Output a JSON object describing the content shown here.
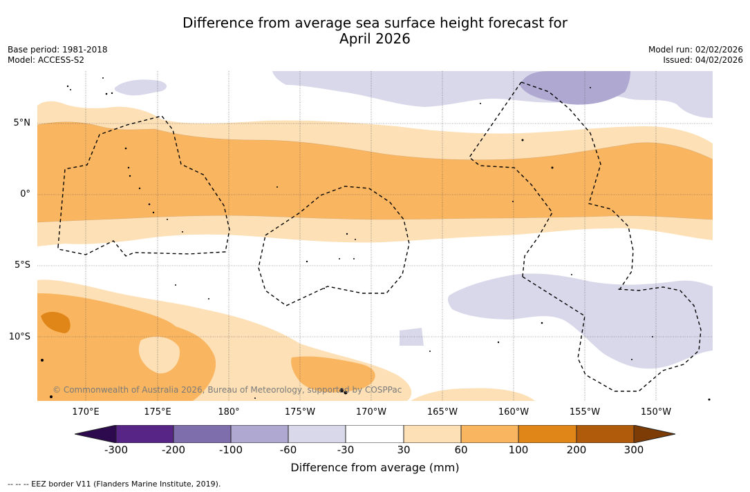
{
  "title_line1": "Difference from average sea surface height forecast for",
  "title_line2": "April 2026",
  "base_period": "Base period: 1981-2018",
  "model": "Model: ACCESS-S2",
  "model_run": "Model run: 02/02/2026",
  "issued": "Issued: 04/02/2026",
  "copyright": "© Commonwealth of Australia 2026, Bureau of Meteorology, supported by COSPPac",
  "lat_labels": [
    "5°N",
    "0°",
    "5°S",
    "10°S"
  ],
  "lon_labels": [
    "170°E",
    "175°E",
    "180°",
    "175°W",
    "170°W",
    "165°W",
    "160°W",
    "155°W",
    "150°W"
  ],
  "colorbar": {
    "label": "Difference from average (mm)",
    "ticks": [
      "-300",
      "-200",
      "-100",
      "-60",
      "-30",
      "30",
      "60",
      "100",
      "200",
      "300"
    ],
    "colors": {
      "under": "#2d0a4e",
      "bins": [
        "#562586",
        "#7e6eab",
        "#afa8d1",
        "#d8d8ea",
        "#ffffff",
        "#fde0b6",
        "#f9b55f",
        "#e08518",
        "#b05a0c"
      ],
      "over": "#7d3c06"
    }
  },
  "legend_text": "--  --  -- EEZ border V11 (Flanders Marine Institute, 2019)."
}
